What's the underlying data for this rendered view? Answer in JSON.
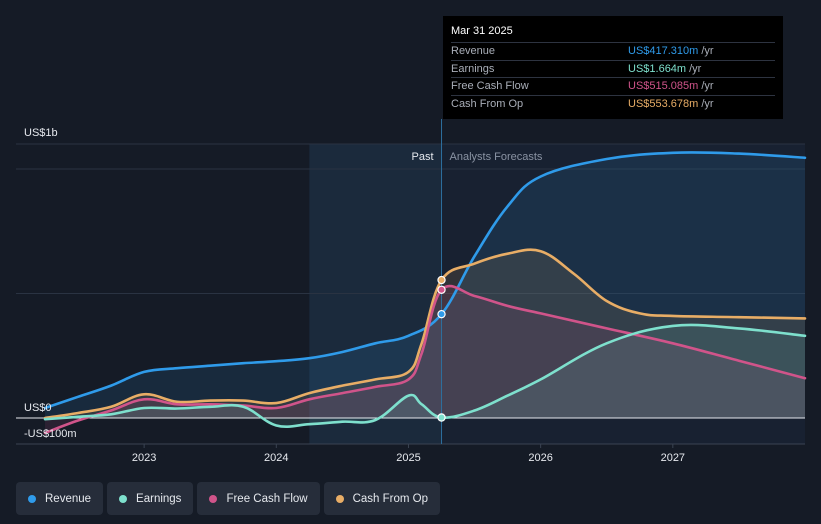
{
  "tooltip": {
    "date": "Mar 31 2025",
    "rows": [
      {
        "label": "Revenue",
        "value": "US$417.310m",
        "unit": "/yr",
        "color": "#2f9bea"
      },
      {
        "label": "Earnings",
        "value": "US$1.664m",
        "unit": "/yr",
        "color": "#7ee0cd"
      },
      {
        "label": "Free Cash Flow",
        "value": "US$515.085m",
        "unit": "/yr",
        "color": "#d0548a"
      },
      {
        "label": "Cash From Op",
        "value": "US$553.678m",
        "unit": "/yr",
        "color": "#e8ad66"
      }
    ]
  },
  "labels": {
    "past": "Past",
    "forecast": "Analysts Forecasts"
  },
  "legend": [
    {
      "label": "Revenue",
      "color": "#2f9bea"
    },
    {
      "label": "Earnings",
      "color": "#7ee0cd"
    },
    {
      "label": "Free Cash Flow",
      "color": "#d0548a"
    },
    {
      "label": "Cash From Op",
      "color": "#e8ad66"
    }
  ],
  "chart_data": {
    "type": "line",
    "y_tick_labels": [
      "US$1b",
      "US$0",
      "-US$100m"
    ],
    "y_ticks": [
      1000,
      0,
      -100
    ],
    "ylim": [
      -100,
      1100
    ],
    "xlim": [
      2022.25,
      2028.0
    ],
    "x_ticks": [
      2023,
      2024,
      2025,
      2026,
      2027
    ],
    "x_tick_labels": [
      "2023",
      "2024",
      "2025",
      "2026",
      "2027"
    ],
    "past_region": [
      2024.25,
      2025.25
    ],
    "forecast_start": 2025.25,
    "highlight_date": 2025.25,
    "series": [
      {
        "name": "Revenue",
        "color": "#2f9bea",
        "points": [
          [
            2022.25,
            40
          ],
          [
            2022.5,
            85
          ],
          [
            2022.75,
            130
          ],
          [
            2023.0,
            185
          ],
          [
            2023.25,
            200
          ],
          [
            2023.5,
            210
          ],
          [
            2023.75,
            220
          ],
          [
            2024.0,
            228
          ],
          [
            2024.25,
            240
          ],
          [
            2024.5,
            265
          ],
          [
            2024.75,
            300
          ],
          [
            2025.0,
            330
          ],
          [
            2025.25,
            417
          ],
          [
            2025.5,
            650
          ],
          [
            2025.75,
            850
          ],
          [
            2026.0,
            970
          ],
          [
            2026.5,
            1040
          ],
          [
            2027.0,
            1065
          ],
          [
            2027.5,
            1062
          ],
          [
            2028.0,
            1045
          ]
        ]
      },
      {
        "name": "Earnings",
        "color": "#7ee0cd",
        "points": [
          [
            2022.25,
            -5
          ],
          [
            2022.5,
            5
          ],
          [
            2022.75,
            15
          ],
          [
            2023.0,
            40
          ],
          [
            2023.25,
            38
          ],
          [
            2023.5,
            45
          ],
          [
            2023.75,
            45
          ],
          [
            2024.0,
            -30
          ],
          [
            2024.25,
            -25
          ],
          [
            2024.5,
            -15
          ],
          [
            2024.75,
            -8
          ],
          [
            2025.0,
            90
          ],
          [
            2025.1,
            55
          ],
          [
            2025.25,
            2
          ],
          [
            2025.5,
            30
          ],
          [
            2025.75,
            90
          ],
          [
            2026.0,
            155
          ],
          [
            2026.5,
            300
          ],
          [
            2027.0,
            370
          ],
          [
            2027.5,
            360
          ],
          [
            2028.0,
            330
          ]
        ]
      },
      {
        "name": "Free Cash Flow",
        "color": "#d0548a",
        "points": [
          [
            2022.25,
            -60
          ],
          [
            2022.5,
            -10
          ],
          [
            2022.75,
            30
          ],
          [
            2023.0,
            75
          ],
          [
            2023.25,
            55
          ],
          [
            2023.5,
            55
          ],
          [
            2023.75,
            50
          ],
          [
            2024.0,
            40
          ],
          [
            2024.25,
            75
          ],
          [
            2024.5,
            100
          ],
          [
            2024.75,
            125
          ],
          [
            2025.0,
            155
          ],
          [
            2025.1,
            260
          ],
          [
            2025.25,
            515
          ],
          [
            2025.5,
            490
          ],
          [
            2025.75,
            450
          ],
          [
            2026.0,
            420
          ],
          [
            2026.5,
            360
          ],
          [
            2027.0,
            300
          ],
          [
            2027.5,
            230
          ],
          [
            2028.0,
            160
          ]
        ]
      },
      {
        "name": "Cash From Op",
        "color": "#e8ad66",
        "points": [
          [
            2022.25,
            0
          ],
          [
            2022.5,
            20
          ],
          [
            2022.75,
            45
          ],
          [
            2023.0,
            95
          ],
          [
            2023.25,
            65
          ],
          [
            2023.5,
            70
          ],
          [
            2023.75,
            70
          ],
          [
            2024.0,
            60
          ],
          [
            2024.25,
            100
          ],
          [
            2024.5,
            130
          ],
          [
            2024.75,
            155
          ],
          [
            2025.0,
            185
          ],
          [
            2025.1,
            300
          ],
          [
            2025.25,
            554
          ],
          [
            2025.5,
            620
          ],
          [
            2025.75,
            660
          ],
          [
            2026.0,
            670
          ],
          [
            2026.25,
            580
          ],
          [
            2026.5,
            470
          ],
          [
            2026.75,
            420
          ],
          [
            2027.0,
            410
          ],
          [
            2027.5,
            405
          ],
          [
            2028.0,
            400
          ]
        ]
      }
    ]
  }
}
